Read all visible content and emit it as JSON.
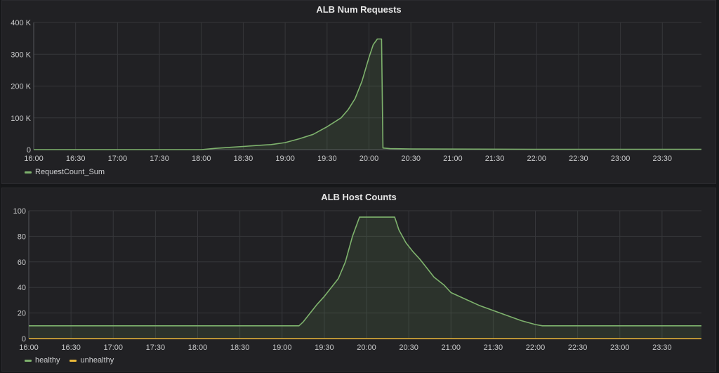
{
  "chart_data": [
    {
      "type": "area",
      "title": "ALB Num Requests",
      "xlabel": "",
      "ylabel": "",
      "x_ticks": [
        "16:00",
        "16:30",
        "17:00",
        "17:30",
        "18:00",
        "18:30",
        "19:00",
        "19:30",
        "20:00",
        "20:30",
        "21:00",
        "21:30",
        "22:00",
        "22:30",
        "23:00",
        "23:30"
      ],
      "y_ticks": [
        "0",
        "100 K",
        "200 K",
        "300 K",
        "400 K"
      ],
      "xlim": [
        "16:00",
        "23:58"
      ],
      "ylim": [
        0,
        400000
      ],
      "grid": true,
      "legend_position": "bottom-left",
      "series": [
        {
          "name": "RequestCount_Sum",
          "color": "#7eb26d",
          "points": [
            [
              "16:00",
              0
            ],
            [
              "18:00",
              0
            ],
            [
              "18:10",
              4000
            ],
            [
              "18:20",
              7000
            ],
            [
              "18:30",
              10000
            ],
            [
              "18:40",
              13000
            ],
            [
              "18:50",
              16000
            ],
            [
              "19:00",
              22000
            ],
            [
              "19:10",
              34000
            ],
            [
              "19:20",
              48000
            ],
            [
              "19:30",
              72000
            ],
            [
              "19:40",
              100000
            ],
            [
              "19:45",
              125000
            ],
            [
              "19:50",
              160000
            ],
            [
              "19:55",
              215000
            ],
            [
              "20:00",
              290000
            ],
            [
              "20:03",
              330000
            ],
            [
              "20:06",
              348000
            ],
            [
              "20:09",
              348000
            ],
            [
              "20:10",
              5000
            ],
            [
              "20:15",
              3000
            ],
            [
              "20:30",
              2000
            ],
            [
              "22:00",
              1000
            ],
            [
              "23:58",
              1000
            ]
          ]
        }
      ]
    },
    {
      "type": "area",
      "title": "ALB Host Counts",
      "xlabel": "",
      "ylabel": "",
      "x_ticks": [
        "16:00",
        "16:30",
        "17:00",
        "17:30",
        "18:00",
        "18:30",
        "19:00",
        "19:30",
        "20:00",
        "20:30",
        "21:00",
        "21:30",
        "22:00",
        "22:30",
        "23:00",
        "23:30"
      ],
      "y_ticks": [
        "0",
        "20",
        "40",
        "60",
        "80",
        "100"
      ],
      "xlim": [
        "16:00",
        "23:58"
      ],
      "ylim": [
        0,
        100
      ],
      "grid": true,
      "legend_position": "bottom-left",
      "series": [
        {
          "name": "healthy",
          "color": "#7eb26d",
          "points": [
            [
              "16:00",
              10
            ],
            [
              "19:12",
              10
            ],
            [
              "19:15",
              13
            ],
            [
              "19:20",
              20
            ],
            [
              "19:25",
              27
            ],
            [
              "19:30",
              33
            ],
            [
              "19:35",
              40
            ],
            [
              "19:40",
              47
            ],
            [
              "19:45",
              60
            ],
            [
              "19:50",
              80
            ],
            [
              "19:55",
              95
            ],
            [
              "20:00",
              95
            ],
            [
              "20:10",
              95
            ],
            [
              "20:20",
              95
            ],
            [
              "20:23",
              85
            ],
            [
              "20:28",
              75
            ],
            [
              "20:33",
              68
            ],
            [
              "20:38",
              62
            ],
            [
              "20:43",
              55
            ],
            [
              "20:48",
              48
            ],
            [
              "20:55",
              42
            ],
            [
              "21:00",
              36
            ],
            [
              "21:10",
              31
            ],
            [
              "21:20",
              26
            ],
            [
              "21:30",
              22
            ],
            [
              "21:40",
              18
            ],
            [
              "21:50",
              14
            ],
            [
              "22:00",
              11
            ],
            [
              "22:05",
              10
            ],
            [
              "23:58",
              10
            ]
          ]
        },
        {
          "name": "unhealthy",
          "color": "#eab839",
          "points": [
            [
              "16:00",
              0
            ],
            [
              "23:58",
              0
            ]
          ]
        }
      ]
    }
  ]
}
